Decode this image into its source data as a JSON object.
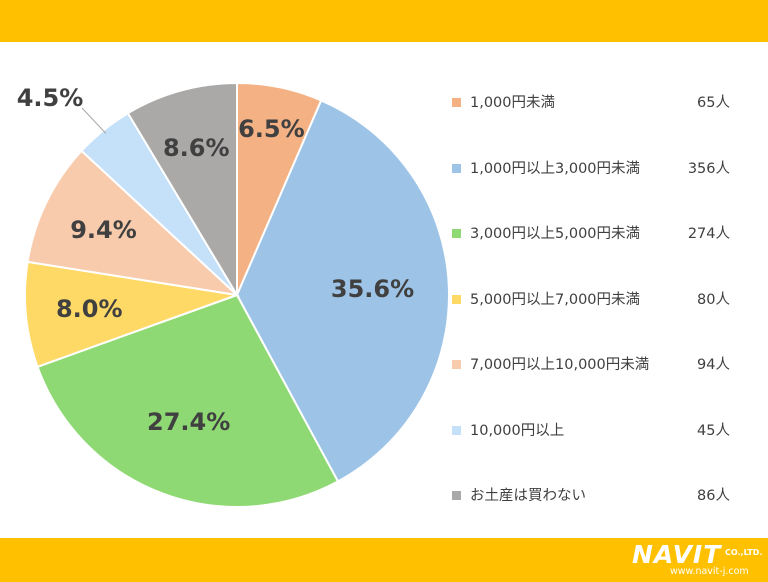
{
  "chart_data": {
    "type": "pie",
    "start_angle_deg": 0,
    "direction": "clockwise",
    "slices": [
      {
        "label": "1,000円未満",
        "count": "65人",
        "percent": 6.5,
        "percent_label": "6.5%",
        "color": "#F4B183"
      },
      {
        "label": "1,000円以上3,000円未満",
        "count": "356人",
        "percent": 35.6,
        "percent_label": "35.6%",
        "color": "#9DC3E6"
      },
      {
        "label": "3,000円以上5,000円未満",
        "count": "274人",
        "percent": 27.4,
        "percent_label": "27.4%",
        "color": "#8ED973"
      },
      {
        "label": "5,000円以上7,000円未満",
        "count": "80人",
        "percent": 8.0,
        "percent_label": "8.0%",
        "color": "#FFD966"
      },
      {
        "label": "7,000円以上10,000円未満",
        "count": "94人",
        "percent": 9.4,
        "percent_label": "9.4%",
        "color": "#F8CBAD"
      },
      {
        "label": "10,000円以上",
        "count": "45人",
        "percent": 4.5,
        "percent_label": "4.5%",
        "color": "#C5E0F9"
      },
      {
        "label": "お土産は買わない",
        "count": "86人",
        "percent": 8.6,
        "percent_label": "8.6%",
        "color": "#ABA8A8"
      }
    ],
    "legend_position": "right"
  },
  "branding": {
    "logo_name": "NAVIT",
    "logo_suffix": "CO.,LTD.",
    "logo_url": "www.navit-j.com"
  },
  "colors": {
    "band": "#FFC000"
  }
}
